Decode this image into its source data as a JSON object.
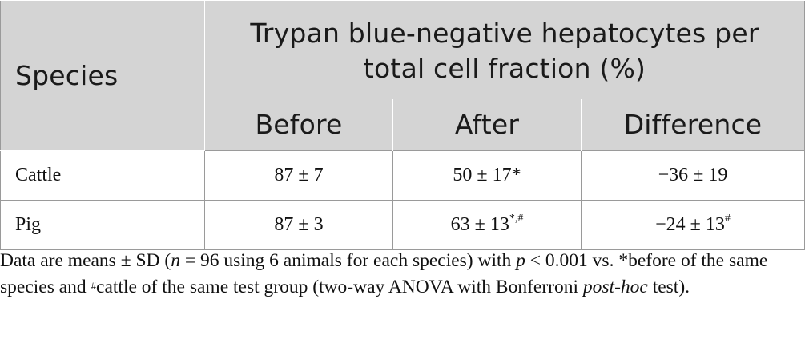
{
  "table": {
    "header": {
      "species": "Species",
      "group_line1": "Trypan blue-negative hepatocytes per",
      "group_line2": "total cell fraction (%)",
      "before": "Before",
      "after": "After",
      "difference": "Difference"
    },
    "rows": [
      {
        "species": "Cattle",
        "before": "87 ± 7",
        "after": "50 ± 17*",
        "after_sup": "",
        "difference": "−36 ± 19",
        "difference_sup": ""
      },
      {
        "species": "Pig",
        "before": "87 ± 3",
        "after": "63 ± 13",
        "after_sup": "*,#",
        "difference": "−24 ± 13",
        "difference_sup": "#"
      }
    ]
  },
  "footnote": {
    "p1": "Data are means ± SD (",
    "n_italic": "n",
    "p2": " = 96 using 6 animals for each species) with ",
    "p_italic": "p",
    "p3": " < 0.001 vs. *before of the same species and ",
    "hash": "#",
    "p4": "cattle of the same test group (two-way ANOVA with Bonferroni ",
    "posthoc_italic": "post-hoc",
    "p5": " test)."
  }
}
